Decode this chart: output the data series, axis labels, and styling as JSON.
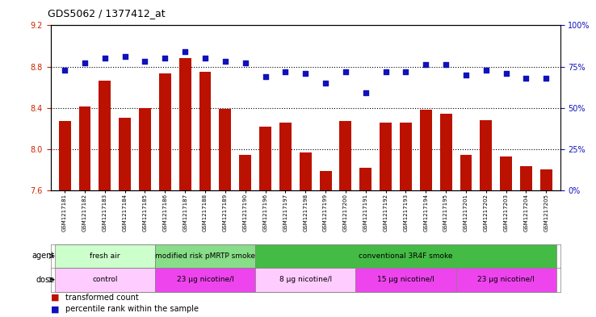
{
  "title": "GDS5062 / 1377412_at",
  "samples": [
    "GSM1217181",
    "GSM1217182",
    "GSM1217183",
    "GSM1217184",
    "GSM1217185",
    "GSM1217186",
    "GSM1217187",
    "GSM1217188",
    "GSM1217189",
    "GSM1217190",
    "GSM1217196",
    "GSM1217197",
    "GSM1217198",
    "GSM1217199",
    "GSM1217200",
    "GSM1217191",
    "GSM1217192",
    "GSM1217193",
    "GSM1217194",
    "GSM1217195",
    "GSM1217201",
    "GSM1217202",
    "GSM1217203",
    "GSM1217204",
    "GSM1217205"
  ],
  "bar_values": [
    8.27,
    8.41,
    8.66,
    8.3,
    8.4,
    8.73,
    8.88,
    8.75,
    8.39,
    7.94,
    8.22,
    8.26,
    7.97,
    7.79,
    8.27,
    7.82,
    8.26,
    8.26,
    8.38,
    8.34,
    7.94,
    8.28,
    7.93,
    7.83,
    7.8
  ],
  "percentile_values": [
    73,
    77,
    80,
    81,
    78,
    80,
    84,
    80,
    78,
    77,
    69,
    72,
    71,
    65,
    72,
    59,
    72,
    72,
    76,
    76,
    70,
    73,
    71,
    68,
    68
  ],
  "ylim_left": [
    7.6,
    9.2
  ],
  "ylim_right": [
    0,
    100
  ],
  "yticks_left": [
    7.6,
    8.0,
    8.4,
    8.8,
    9.2
  ],
  "yticks_right": [
    0,
    25,
    50,
    75,
    100
  ],
  "bar_color": "#bb1100",
  "dot_color": "#1111bb",
  "background_color": "#ffffff",
  "agent_groups": [
    {
      "label": "fresh air",
      "start": 0,
      "end": 5,
      "color": "#ccffcc"
    },
    {
      "label": "modified risk pMRTP smoke",
      "start": 5,
      "end": 10,
      "color": "#88dd88"
    },
    {
      "label": "conventional 3R4F smoke",
      "start": 10,
      "end": 25,
      "color": "#44bb44"
    }
  ],
  "dose_groups": [
    {
      "label": "control",
      "start": 0,
      "end": 5,
      "color": "#ffccff"
    },
    {
      "label": "23 μg nicotine/l",
      "start": 5,
      "end": 10,
      "color": "#ee44ee"
    },
    {
      "label": "8 μg nicotine/l",
      "start": 10,
      "end": 15,
      "color": "#ffccff"
    },
    {
      "label": "15 μg nicotine/l",
      "start": 15,
      "end": 20,
      "color": "#ee44ee"
    },
    {
      "label": "23 μg nicotine/l",
      "start": 20,
      "end": 25,
      "color": "#ee44ee"
    }
  ]
}
